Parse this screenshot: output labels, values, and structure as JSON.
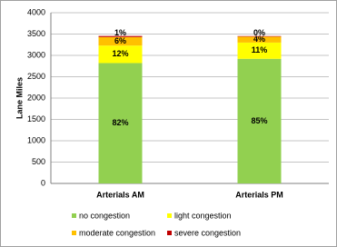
{
  "chart_data": {
    "type": "stacked_bar",
    "categories": [
      "Arterials AM",
      "Arterials PM"
    ],
    "y_label": "Lane Miles",
    "ylim": [
      0,
      4000
    ],
    "yticks": [
      0,
      500,
      1000,
      1500,
      2000,
      2500,
      3000,
      3500,
      4000
    ],
    "grid": true,
    "legend": "bottom",
    "series": [
      {
        "name": "no congestion",
        "color": "#92d050",
        "values": [
          2820,
          2920
        ],
        "value_labels": [
          "82%",
          "85%"
        ]
      },
      {
        "name": "light congestion",
        "color": "#ffff00",
        "values": [
          410,
          380
        ],
        "value_labels": [
          "12%",
          "11%"
        ]
      },
      {
        "name": "moderate congestion",
        "color": "#ffc000",
        "values": [
          200,
          140
        ],
        "value_labels": [
          "6%",
          "4%"
        ]
      },
      {
        "name": "severe congestion",
        "color": "#c00000",
        "values": [
          25,
          12
        ],
        "value_labels": [
          "1%",
          "0%"
        ]
      }
    ]
  }
}
